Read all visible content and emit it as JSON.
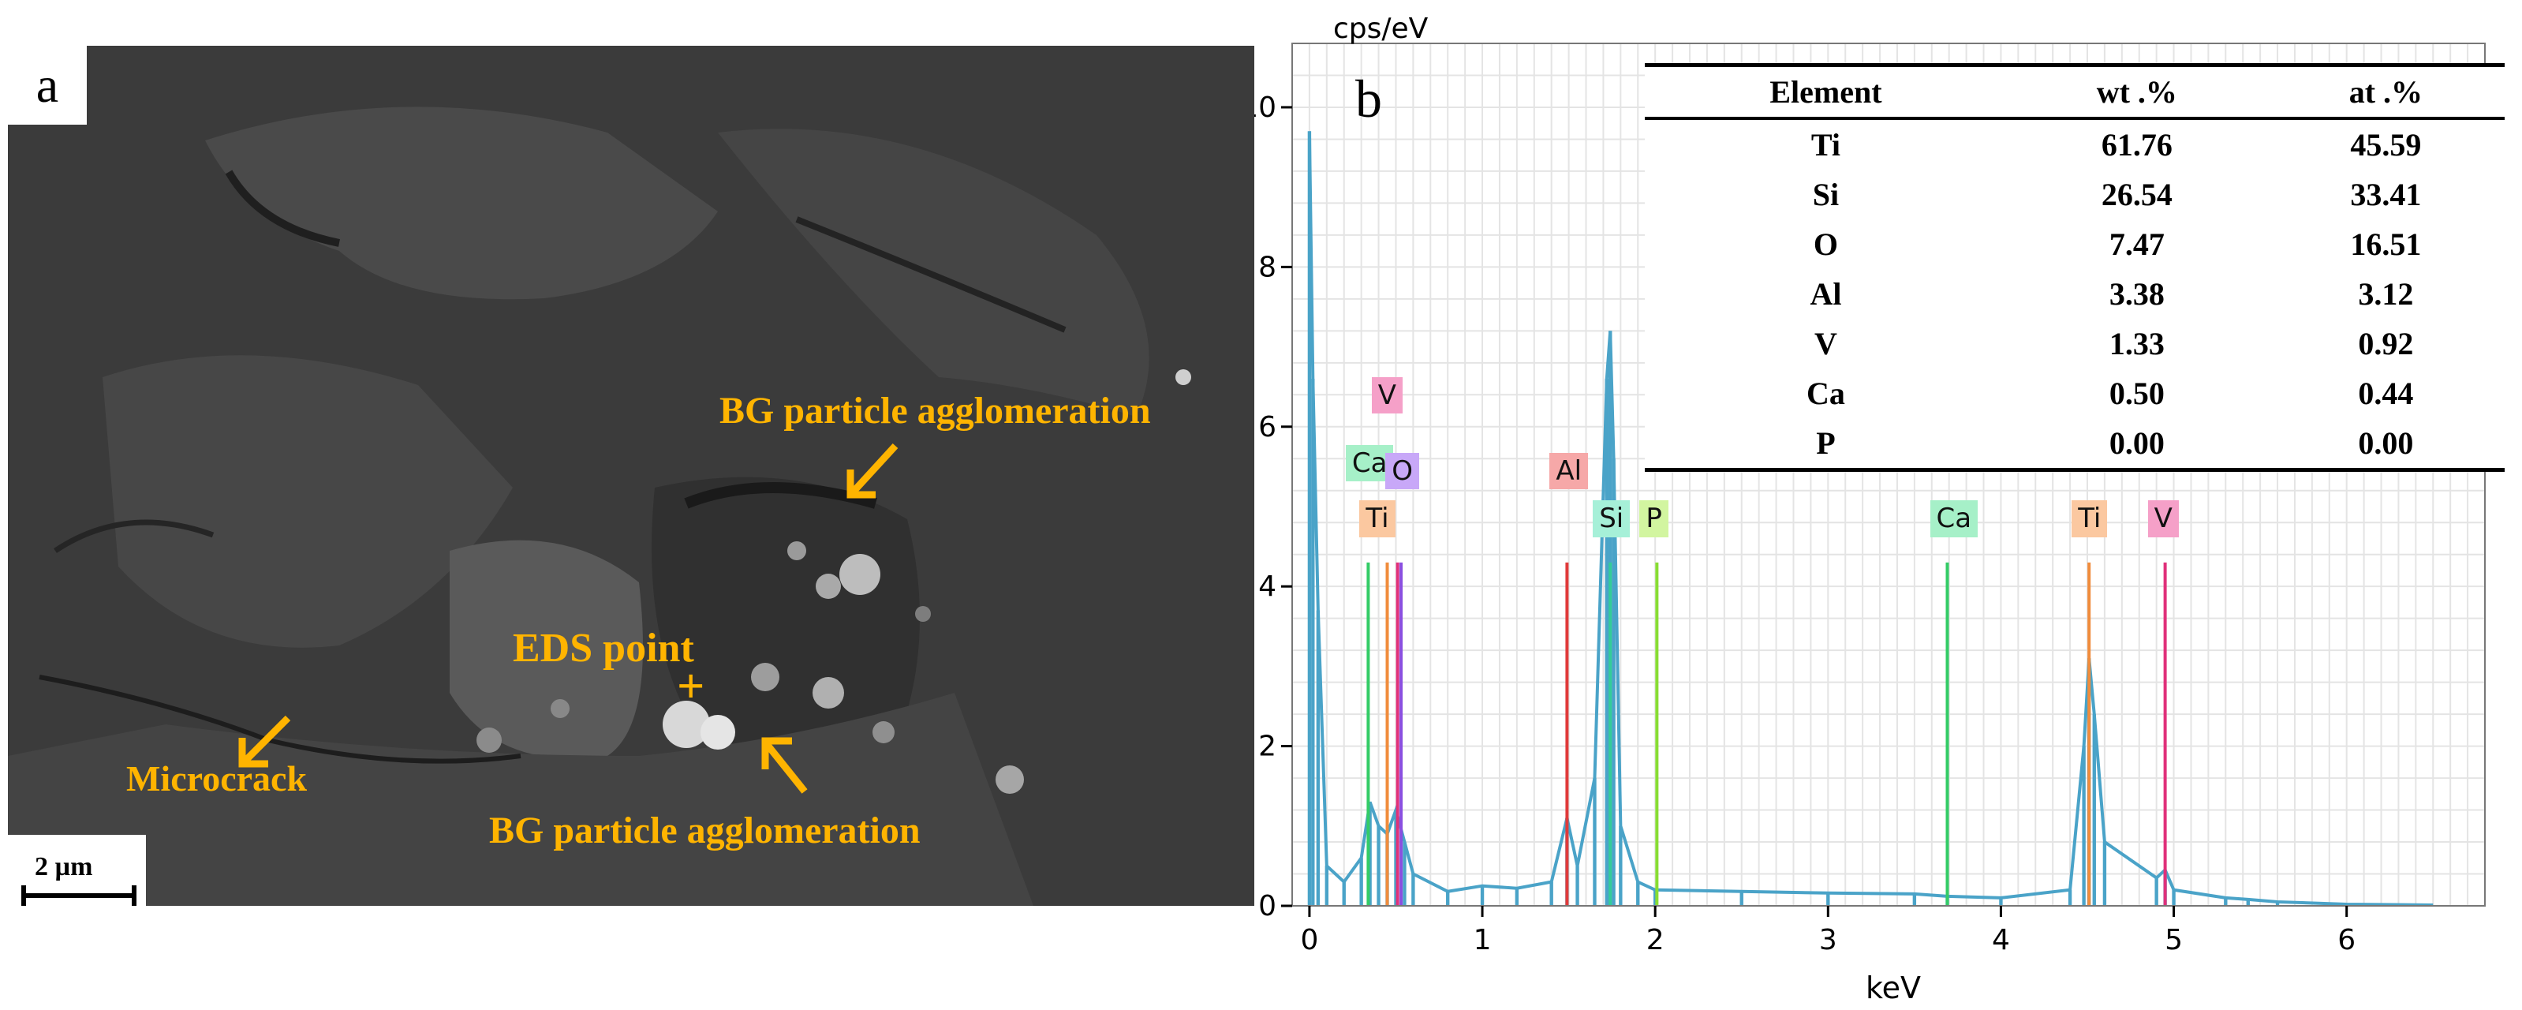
{
  "panel_a": {
    "letter": "a",
    "annotations": {
      "bg_top": "BG particle agglomeration",
      "eds_point": "EDS point",
      "crosshair": "+",
      "microcrack": "Microcrack",
      "bg_bottom": "BG particle agglomeration"
    },
    "scale_bar": "2 µm",
    "annotation_color": "#FFB400"
  },
  "panel_b": {
    "letter": "b",
    "table": {
      "headers": [
        "Element",
        "wt .%",
        "at .%"
      ],
      "rows": [
        [
          "Ti",
          "61.76",
          "45.59"
        ],
        [
          "Si",
          "26.54",
          "33.41"
        ],
        [
          "O",
          "7.47",
          "16.51"
        ],
        [
          "Al",
          "3.38",
          "3.12"
        ],
        [
          "V",
          "1.33",
          "0.92"
        ],
        [
          "Ca",
          "0.50",
          "0.44"
        ],
        [
          "P",
          "0.00",
          "0.00"
        ]
      ]
    }
  },
  "chart_data": {
    "type": "bar",
    "title": "",
    "xlabel": "keV",
    "ylabel": "cps/eV",
    "xlim": [
      -0.1,
      6.8
    ],
    "ylim": [
      0,
      10.8
    ],
    "xticks": [
      0,
      1,
      2,
      3,
      4,
      5,
      6
    ],
    "yticks": [
      0,
      2,
      4,
      6,
      8,
      10
    ],
    "grid": true,
    "spectrum_color": "#4AA3C8",
    "series": [
      {
        "x": [
          0.0,
          0.02,
          0.05,
          0.1,
          0.2,
          0.3,
          0.35,
          0.4,
          0.45,
          0.5,
          0.55,
          0.6,
          0.8,
          1.0,
          1.2,
          1.4,
          1.49,
          1.55,
          1.65,
          1.72,
          1.74,
          1.76,
          1.8,
          1.9,
          2.0,
          2.5,
          3.0,
          3.5,
          3.69,
          4.0,
          4.4,
          4.48,
          4.51,
          4.54,
          4.6,
          4.9,
          4.95,
          5.0,
          5.3,
          5.43,
          5.6,
          6.0,
          6.5
        ],
        "values": [
          9.7,
          6.6,
          3.7,
          0.5,
          0.3,
          0.6,
          1.3,
          1.0,
          0.9,
          1.2,
          0.8,
          0.4,
          0.18,
          0.25,
          0.22,
          0.3,
          1.1,
          0.5,
          1.6,
          6.6,
          7.2,
          5.6,
          1.0,
          0.3,
          0.2,
          0.18,
          0.16,
          0.15,
          0.12,
          0.1,
          0.2,
          2.0,
          3.1,
          2.4,
          0.8,
          0.35,
          0.45,
          0.2,
          0.1,
          0.08,
          0.05,
          0.02,
          0.01
        ]
      }
    ],
    "element_lines": [
      {
        "label": "Ca",
        "x": 0.34,
        "height": 4.3,
        "color": "#33CC66"
      },
      {
        "label": "Ti",
        "x": 0.45,
        "height": 4.3,
        "color": "#F08C3C"
      },
      {
        "label": "V",
        "x": 0.51,
        "height": 4.3,
        "color": "#E0307A"
      },
      {
        "label": "O",
        "x": 0.53,
        "height": 4.3,
        "color": "#8A4FE0"
      },
      {
        "label": "Al",
        "x": 1.49,
        "height": 4.3,
        "color": "#E03A3A"
      },
      {
        "label": "Si",
        "x": 1.74,
        "height": 4.3,
        "color": "#33CC99"
      },
      {
        "label": "P",
        "x": 2.01,
        "height": 4.3,
        "color": "#88DD33"
      },
      {
        "label": "Ca",
        "x": 3.69,
        "height": 4.3,
        "color": "#33CC66"
      },
      {
        "label": "Ti",
        "x": 4.51,
        "height": 4.3,
        "color": "#F08C3C"
      },
      {
        "label": "V",
        "x": 4.95,
        "height": 4.3,
        "color": "#E0307A"
      }
    ],
    "tags": [
      {
        "label": "V",
        "x": 0.46,
        "y": 6.15,
        "color": "#F5A0C8"
      },
      {
        "label": "Ca",
        "x": 0.31,
        "y": 5.3,
        "color": "#A6F0C8"
      },
      {
        "label": "O",
        "x": 0.54,
        "y": 5.2,
        "color": "#C8A8F8"
      },
      {
        "label": "Ti",
        "x": 0.39,
        "y": 4.6,
        "color": "#FBC8A0"
      },
      {
        "label": "Al",
        "x": 1.49,
        "y": 5.2,
        "color": "#F6A8A8"
      },
      {
        "label": "Si",
        "x": 1.74,
        "y": 4.6,
        "color": "#A6F0D8"
      },
      {
        "label": "P",
        "x": 2.01,
        "y": 4.6,
        "color": "#D2F5A0"
      },
      {
        "label": "Ca",
        "x": 3.69,
        "y": 4.6,
        "color": "#A6F0C8"
      },
      {
        "label": "Ti",
        "x": 4.51,
        "y": 4.6,
        "color": "#FBC8A0"
      },
      {
        "label": "V",
        "x": 4.95,
        "y": 4.6,
        "color": "#F5A0C8"
      }
    ]
  }
}
